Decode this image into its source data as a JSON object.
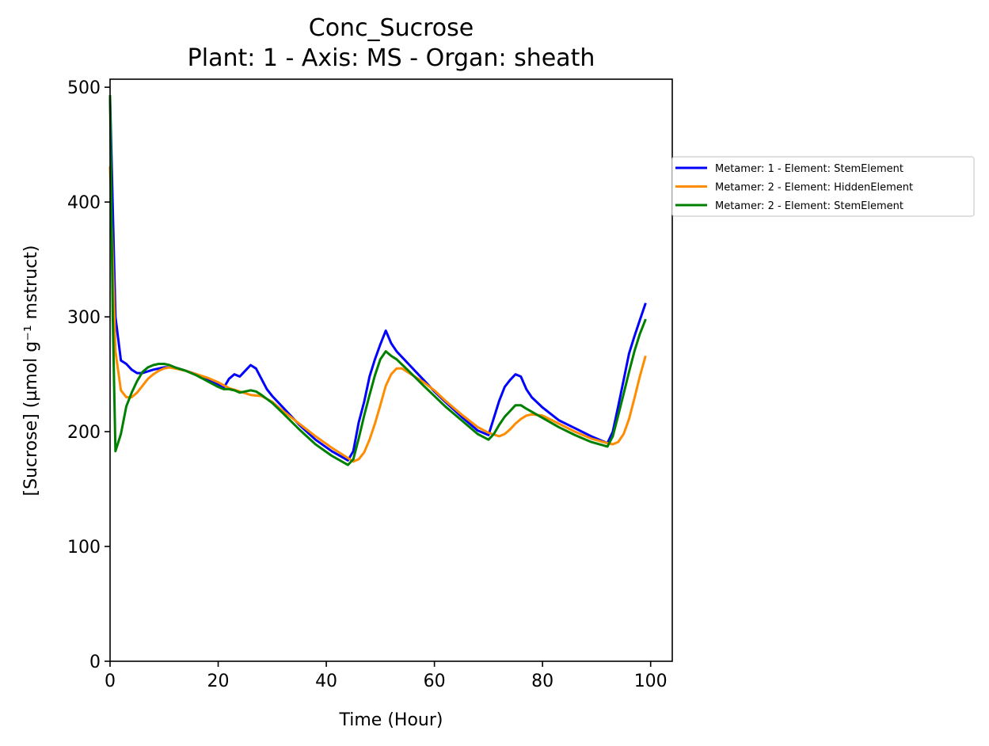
{
  "chart_data": {
    "type": "line",
    "title": "Conc_Sucrose",
    "subtitle": "Plant: 1 - Axis: MS - Organ: sheath",
    "xlabel": "Time (Hour)",
    "ylabel": "[Sucrose] (µmol g⁻¹ mstruct)",
    "xlim": [
      0,
      104
    ],
    "ylim": [
      0,
      507
    ],
    "xticks": [
      0,
      20,
      40,
      60,
      80,
      100
    ],
    "yticks": [
      0,
      100,
      200,
      300,
      400,
      500
    ],
    "grid": false,
    "legend_position": "outside-right",
    "series": [
      {
        "name": "Metamer: 1 - Element: StemElement",
        "color": "#0000ff",
        "points": [
          [
            0,
            490
          ],
          [
            1,
            300
          ],
          [
            2,
            262
          ],
          [
            3,
            259
          ],
          [
            4,
            254
          ],
          [
            5,
            251
          ],
          [
            6,
            251
          ],
          [
            8,
            254
          ],
          [
            10,
            256
          ],
          [
            12,
            256
          ],
          [
            14,
            253
          ],
          [
            16,
            250
          ],
          [
            18,
            246
          ],
          [
            20,
            241
          ],
          [
            21,
            238
          ],
          [
            22,
            246
          ],
          [
            23,
            250
          ],
          [
            24,
            248
          ],
          [
            25,
            253
          ],
          [
            26,
            258
          ],
          [
            27,
            255
          ],
          [
            28,
            246
          ],
          [
            29,
            237
          ],
          [
            30,
            231
          ],
          [
            32,
            221
          ],
          [
            35,
            206
          ],
          [
            38,
            193
          ],
          [
            41,
            183
          ],
          [
            44,
            175
          ],
          [
            45,
            183
          ],
          [
            46,
            208
          ],
          [
            47,
            226
          ],
          [
            48,
            248
          ],
          [
            49,
            263
          ],
          [
            50,
            276
          ],
          [
            51,
            288
          ],
          [
            52,
            277
          ],
          [
            53,
            270
          ],
          [
            55,
            260
          ],
          [
            58,
            245
          ],
          [
            60,
            235
          ],
          [
            62,
            226
          ],
          [
            65,
            213
          ],
          [
            68,
            201
          ],
          [
            70,
            197
          ],
          [
            71,
            212
          ],
          [
            72,
            227
          ],
          [
            73,
            239
          ],
          [
            74,
            245
          ],
          [
            75,
            250
          ],
          [
            76,
            248
          ],
          [
            77,
            237
          ],
          [
            78,
            230
          ],
          [
            80,
            221
          ],
          [
            83,
            210
          ],
          [
            86,
            203
          ],
          [
            89,
            196
          ],
          [
            92,
            190
          ],
          [
            93,
            200
          ],
          [
            94,
            222
          ],
          [
            95,
            245
          ],
          [
            96,
            268
          ],
          [
            97,
            283
          ],
          [
            98,
            297
          ],
          [
            99,
            311
          ]
        ]
      },
      {
        "name": "Metamer: 2 - Element: HiddenElement",
        "color": "#ff8c00",
        "points": [
          [
            0,
            430
          ],
          [
            1,
            270
          ],
          [
            2,
            236
          ],
          [
            3,
            230
          ],
          [
            4,
            230
          ],
          [
            5,
            234
          ],
          [
            6,
            240
          ],
          [
            7,
            246
          ],
          [
            8,
            250
          ],
          [
            9,
            253
          ],
          [
            10,
            255
          ],
          [
            11,
            256
          ],
          [
            12,
            255
          ],
          [
            14,
            253
          ],
          [
            16,
            250
          ],
          [
            18,
            247
          ],
          [
            20,
            243
          ],
          [
            22,
            238
          ],
          [
            24,
            235
          ],
          [
            26,
            232
          ],
          [
            28,
            231
          ],
          [
            30,
            226
          ],
          [
            32,
            218
          ],
          [
            35,
            207
          ],
          [
            38,
            196
          ],
          [
            41,
            186
          ],
          [
            44,
            177
          ],
          [
            45,
            174
          ],
          [
            46,
            176
          ],
          [
            47,
            182
          ],
          [
            48,
            193
          ],
          [
            49,
            207
          ],
          [
            50,
            223
          ],
          [
            51,
            240
          ],
          [
            52,
            250
          ],
          [
            53,
            255
          ],
          [
            54,
            255
          ],
          [
            56,
            249
          ],
          [
            58,
            243
          ],
          [
            60,
            236
          ],
          [
            62,
            227
          ],
          [
            65,
            215
          ],
          [
            68,
            204
          ],
          [
            70,
            199
          ],
          [
            72,
            196
          ],
          [
            73,
            198
          ],
          [
            74,
            202
          ],
          [
            75,
            207
          ],
          [
            76,
            211
          ],
          [
            77,
            214
          ],
          [
            78,
            215
          ],
          [
            80,
            214
          ],
          [
            83,
            207
          ],
          [
            86,
            200
          ],
          [
            89,
            194
          ],
          [
            92,
            190
          ],
          [
            93,
            189
          ],
          [
            94,
            191
          ],
          [
            95,
            198
          ],
          [
            96,
            211
          ],
          [
            97,
            229
          ],
          [
            98,
            248
          ],
          [
            99,
            265
          ]
        ]
      },
      {
        "name": "Metamer: 2 - Element: StemElement",
        "color": "#008000",
        "points": [
          [
            0,
            492
          ],
          [
            0.5,
            300
          ],
          [
            1,
            183
          ],
          [
            2,
            198
          ],
          [
            3,
            222
          ],
          [
            4,
            234
          ],
          [
            5,
            244
          ],
          [
            6,
            252
          ],
          [
            7,
            256
          ],
          [
            8,
            258
          ],
          [
            9,
            259
          ],
          [
            10,
            259
          ],
          [
            11,
            258
          ],
          [
            12,
            256
          ],
          [
            14,
            253
          ],
          [
            16,
            249
          ],
          [
            18,
            244
          ],
          [
            20,
            239
          ],
          [
            21,
            237
          ],
          [
            22,
            237
          ],
          [
            23,
            236
          ],
          [
            24,
            234
          ],
          [
            25,
            235
          ],
          [
            26,
            236
          ],
          [
            27,
            235
          ],
          [
            28,
            232
          ],
          [
            30,
            225
          ],
          [
            32,
            216
          ],
          [
            35,
            202
          ],
          [
            38,
            189
          ],
          [
            41,
            179
          ],
          [
            44,
            171
          ],
          [
            45,
            176
          ],
          [
            46,
            194
          ],
          [
            47,
            214
          ],
          [
            48,
            232
          ],
          [
            49,
            249
          ],
          [
            50,
            263
          ],
          [
            51,
            270
          ],
          [
            52,
            266
          ],
          [
            53,
            263
          ],
          [
            55,
            254
          ],
          [
            58,
            240
          ],
          [
            60,
            231
          ],
          [
            62,
            222
          ],
          [
            65,
            210
          ],
          [
            68,
            198
          ],
          [
            70,
            193
          ],
          [
            71,
            198
          ],
          [
            72,
            206
          ],
          [
            73,
            213
          ],
          [
            74,
            218
          ],
          [
            75,
            223
          ],
          [
            76,
            223
          ],
          [
            77,
            220
          ],
          [
            80,
            212
          ],
          [
            83,
            204
          ],
          [
            86,
            197
          ],
          [
            89,
            191
          ],
          [
            92,
            187
          ],
          [
            93,
            196
          ],
          [
            94,
            214
          ],
          [
            95,
            233
          ],
          [
            96,
            252
          ],
          [
            97,
            270
          ],
          [
            98,
            285
          ],
          [
            99,
            297
          ]
        ]
      }
    ]
  }
}
